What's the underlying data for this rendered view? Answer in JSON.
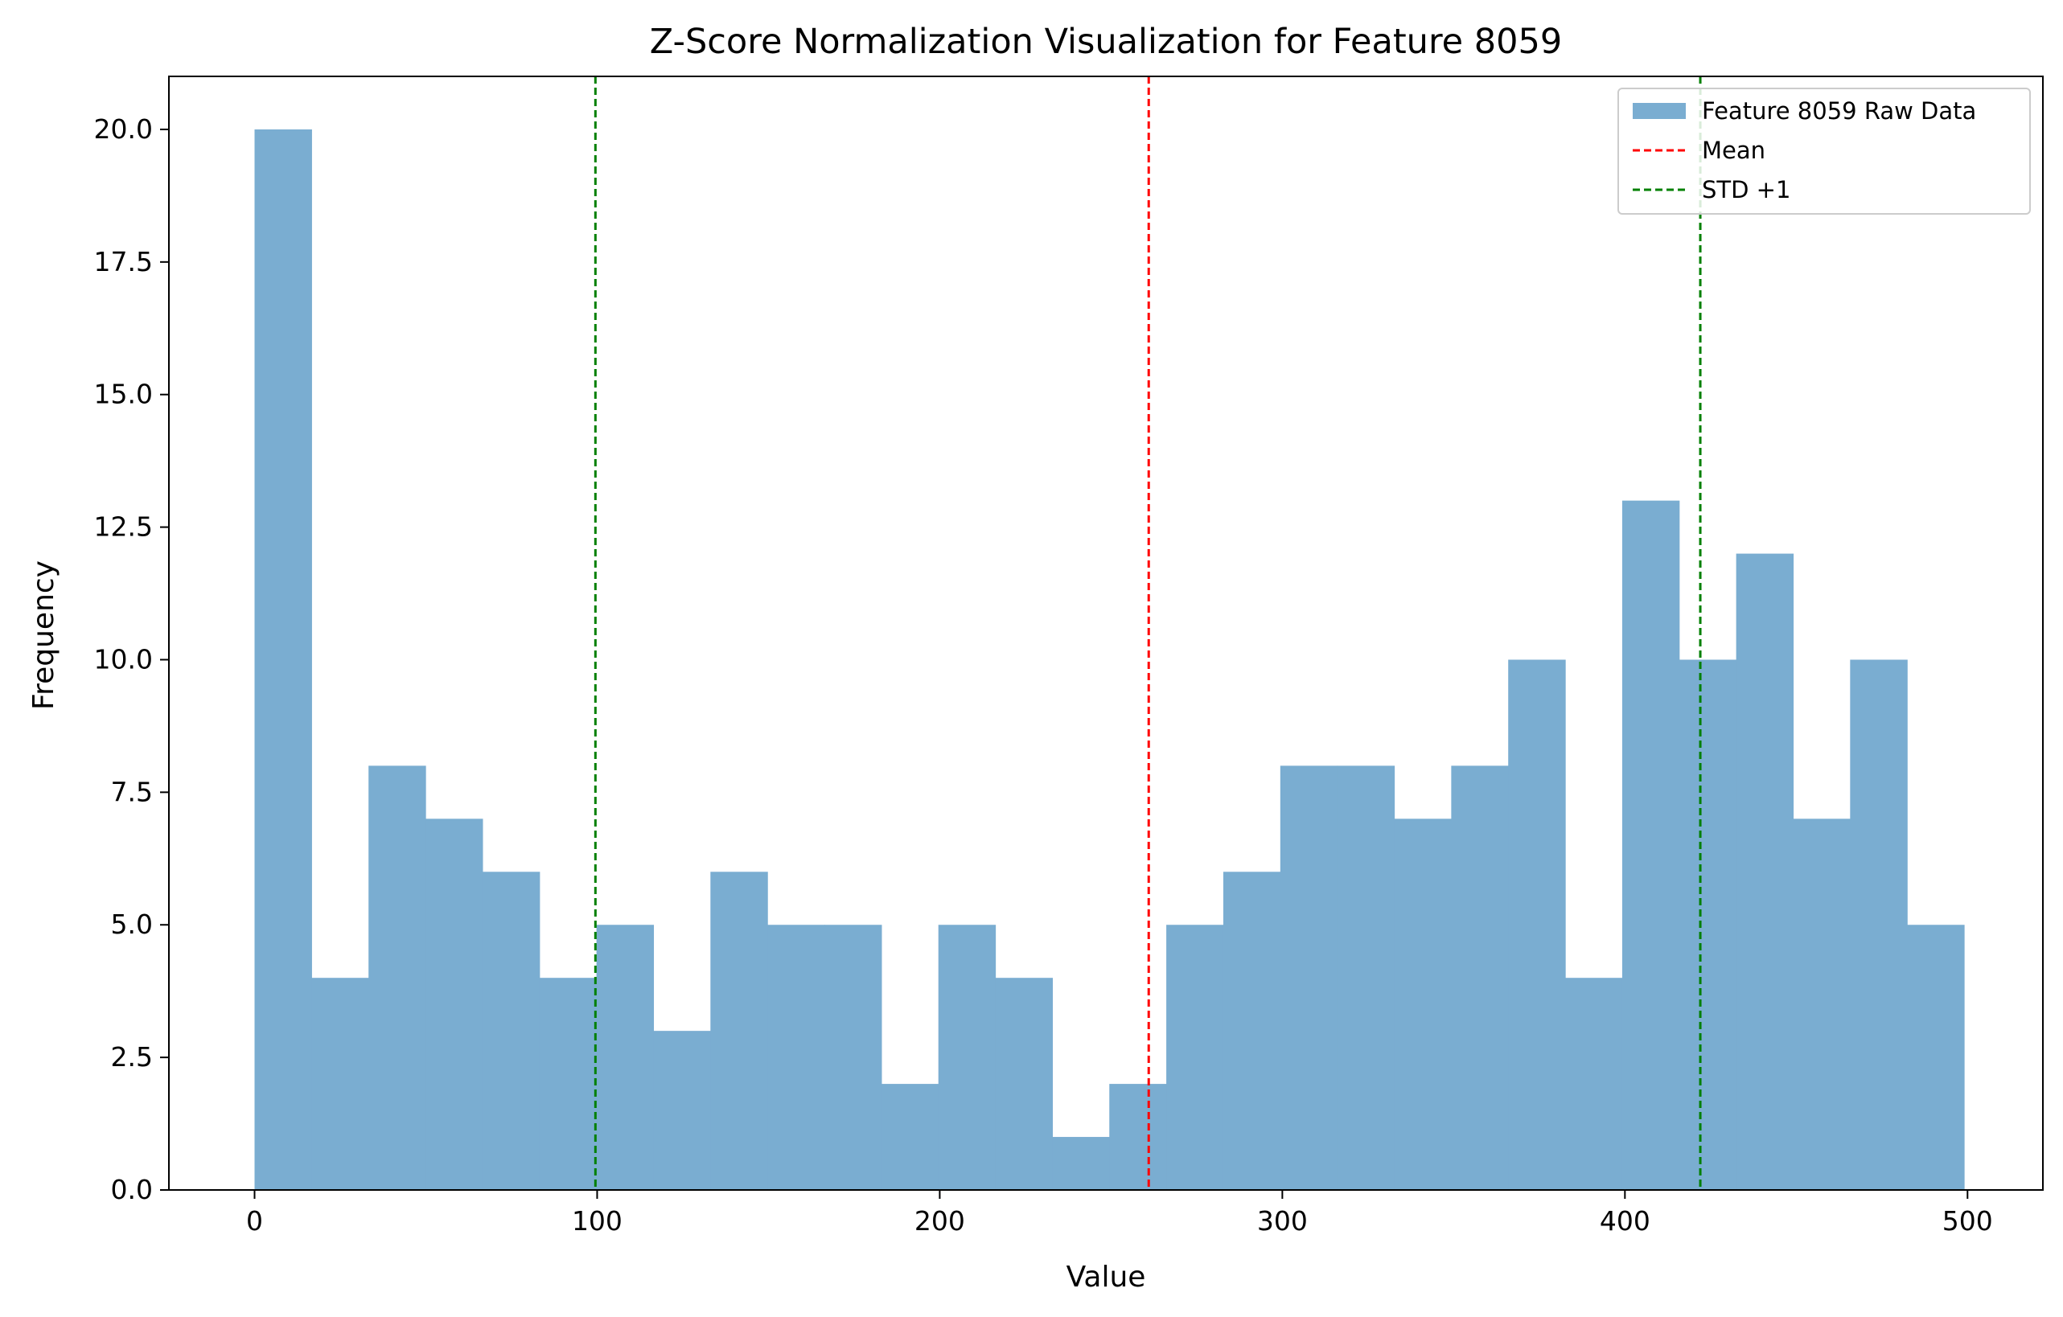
{
  "chart_data": {
    "type": "bar",
    "title": "Z-Score Normalization Visualization for Feature 8059",
    "xlabel": "Value",
    "ylabel": "Frequency",
    "xlim": [
      -25,
      522
    ],
    "ylim": [
      0,
      21
    ],
    "xticks": [
      0,
      100,
      200,
      300,
      400,
      500
    ],
    "yticks": [
      0.0,
      2.5,
      5.0,
      7.5,
      10.0,
      12.5,
      15.0,
      17.5,
      20.0
    ],
    "ytick_labels": [
      "0.0",
      "2.5",
      "5.0",
      "7.5",
      "10.0",
      "12.5",
      "15.0",
      "17.5",
      "20.0"
    ],
    "grid": false,
    "legend_position": "top-right",
    "histogram": {
      "name": "Feature 8059 Raw Data",
      "color": "#7aadd1",
      "bin_edges": [
        0,
        16.63,
        33.27,
        49.9,
        66.53,
        83.17,
        99.8,
        116.43,
        133.07,
        149.7,
        166.33,
        182.97,
        199.6,
        216.23,
        232.87,
        249.5,
        266.13,
        282.77,
        299.4,
        316.03,
        332.67,
        349.3,
        365.93,
        382.57,
        399.2,
        415.83,
        432.47,
        449.1,
        465.73,
        482.37,
        499
      ],
      "counts": [
        20,
        4,
        8,
        7,
        6,
        4,
        5,
        3,
        6,
        5,
        5,
        2,
        5,
        4,
        1,
        2,
        5,
        6,
        8,
        8,
        7,
        8,
        10,
        4,
        13,
        10,
        12,
        7,
        10,
        5
      ]
    },
    "lines": [
      {
        "name": "Mean",
        "x": 261,
        "color": "#ff0000",
        "style": "dashed"
      },
      {
        "name": "STD +1",
        "x": 99.5,
        "color": "#008000",
        "style": "dashed"
      },
      {
        "name": "STD +1",
        "x": 422,
        "color": "#008000",
        "style": "dashed"
      }
    ],
    "legend": [
      {
        "label": "Feature 8059 Raw Data",
        "kind": "patch",
        "color": "#7aadd1"
      },
      {
        "label": "Mean",
        "kind": "dashed-line",
        "color": "#ff0000"
      },
      {
        "label": "STD +1",
        "kind": "dashed-line",
        "color": "#008000"
      }
    ]
  }
}
